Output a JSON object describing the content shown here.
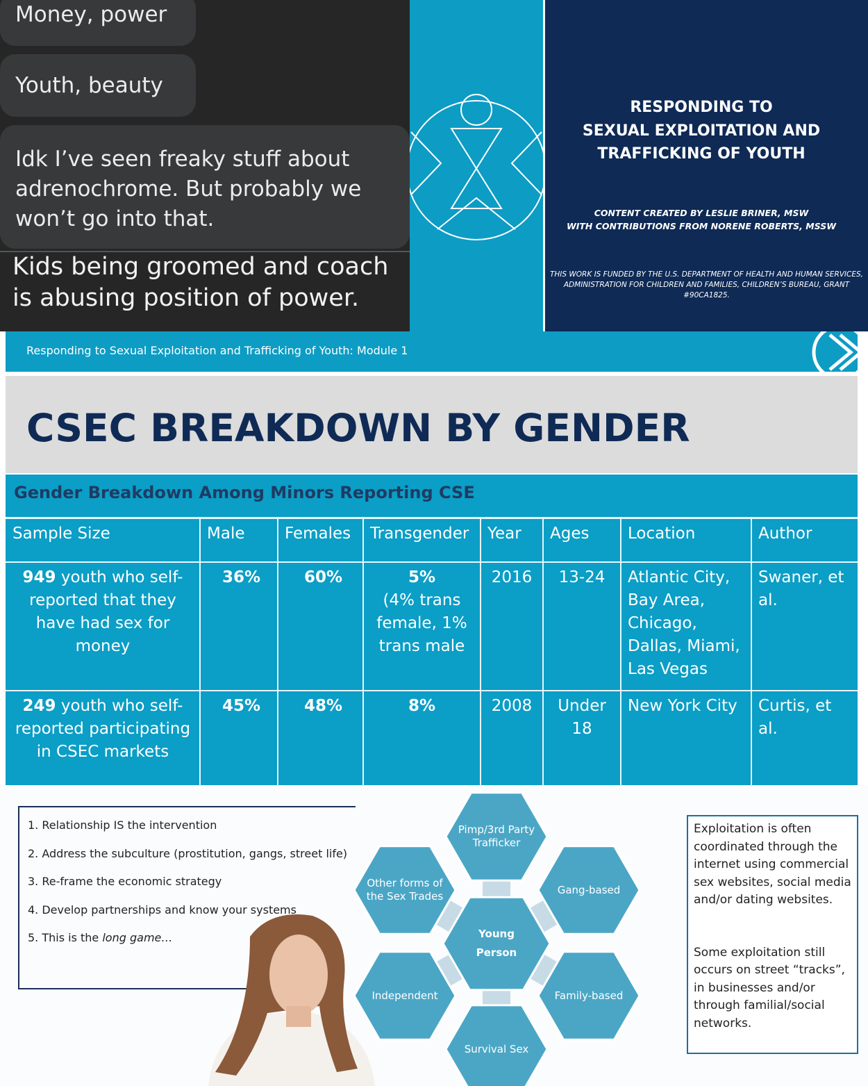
{
  "chat": {
    "messages": [
      "Money, power",
      "Youth, beauty",
      "Idk I’ve seen freaky stuff about adrenochrome.  But probably we won’t go into that.",
      "Kids being groomed and coach is abusing position of power."
    ]
  },
  "title_slide": {
    "title": [
      "RESPONDING TO",
      "SEXUAL EXPLOITATION AND",
      "TRAFFICKING  OF YOUTH"
    ],
    "credits": [
      "CONTENT CREATED BY LESLIE BRINER, MSW",
      "WITH CONTRIBUTIONS FROM NORENE ROBERTS, MSSW"
    ],
    "funding": "THIS WORK IS FUNDED BY THE U.S. DEPARTMENT OF HEALTH AND HUMAN SERVICES, ADMINISTRATION FOR CHILDREN AND FAMILIES, CHILDREN’S BUREAU, GRANT #90CA1825."
  },
  "slide": {
    "header": "Responding to Sexual Exploitation and Trafficking of Youth: Module 1",
    "title": "CSEC BREAKDOWN BY GENDER",
    "table": {
      "caption": "Gender Breakdown Among Minors Reporting CSE",
      "columns": [
        "Sample Size",
        "Male",
        "Females",
        "Transgender",
        "Year",
        "Ages",
        "Location",
        "Author"
      ],
      "rows": [
        {
          "sample_count": "949",
          "sample_text": "youth who self-reported that they have had sex for money",
          "male": "36%",
          "females": "60%",
          "transgender": "5%",
          "transgender_note": "(4% trans female, 1% trans male",
          "year": "2016",
          "ages": "13-24",
          "location": "Atlantic City, Bay Area, Chicago, Dallas, Miami, Las Vegas",
          "author": "Swaner, et al."
        },
        {
          "sample_count": "249",
          "sample_text": "youth who self-reported participating in CSEC markets",
          "male": "45%",
          "females": "48%",
          "transgender": "8%",
          "transgender_note": null,
          "year": "2008",
          "ages": "Under 18",
          "location": "New York City",
          "author": "Curtis, et al."
        }
      ]
    }
  },
  "bottom": {
    "list": [
      "1. Relationship IS the intervention",
      "2. Address the subculture (prostitution, gangs, street life)",
      "3. Re-frame the economic strategy",
      "4. Develop partnerships and know your systems"
    ],
    "last_item": {
      "lead": "5. This is the",
      "emphasis": "long game…"
    },
    "hexagons": {
      "center": "Young Person",
      "outer": [
        "Pimp/3rd Party Trafficker",
        "Gang-based",
        "Family-based",
        "Survival Sex",
        "Independent",
        "Other forms of the Sex Trades"
      ]
    },
    "textbox": [
      "Exploitation is often coordinated through the internet using commercial sex websites, social media and/or dating websites.",
      "Some exploitation still occurs on street “tracks”, in businesses and/or through familial/social networks."
    ]
  }
}
